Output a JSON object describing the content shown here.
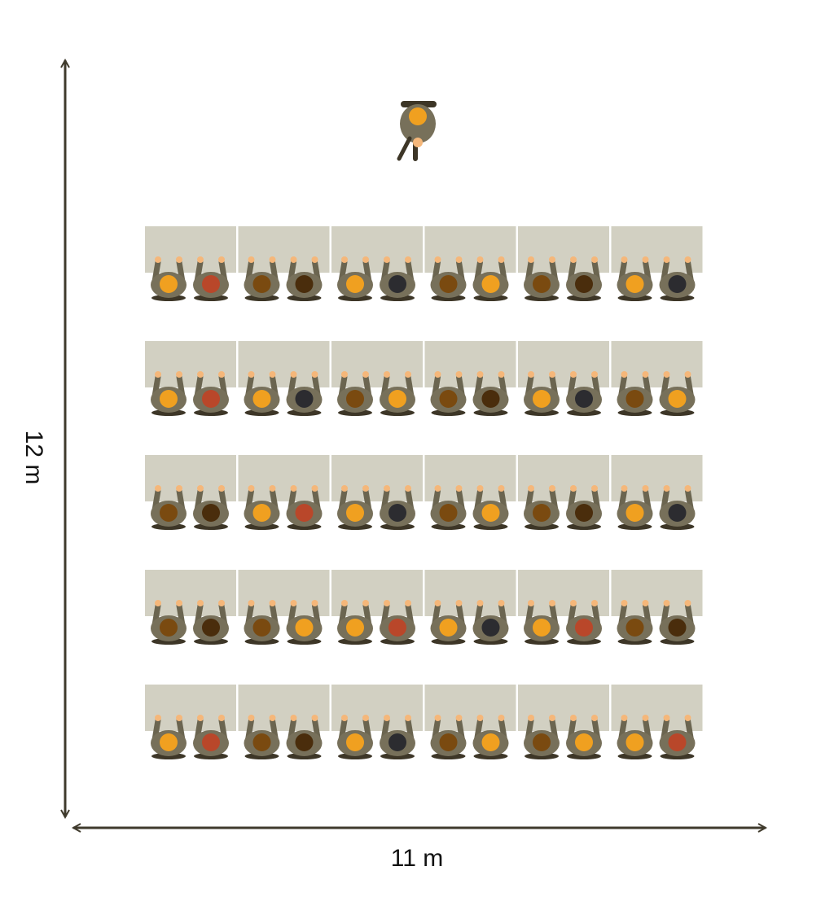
{
  "labels": {
    "height": "12 m",
    "width": "11 m"
  }
}
